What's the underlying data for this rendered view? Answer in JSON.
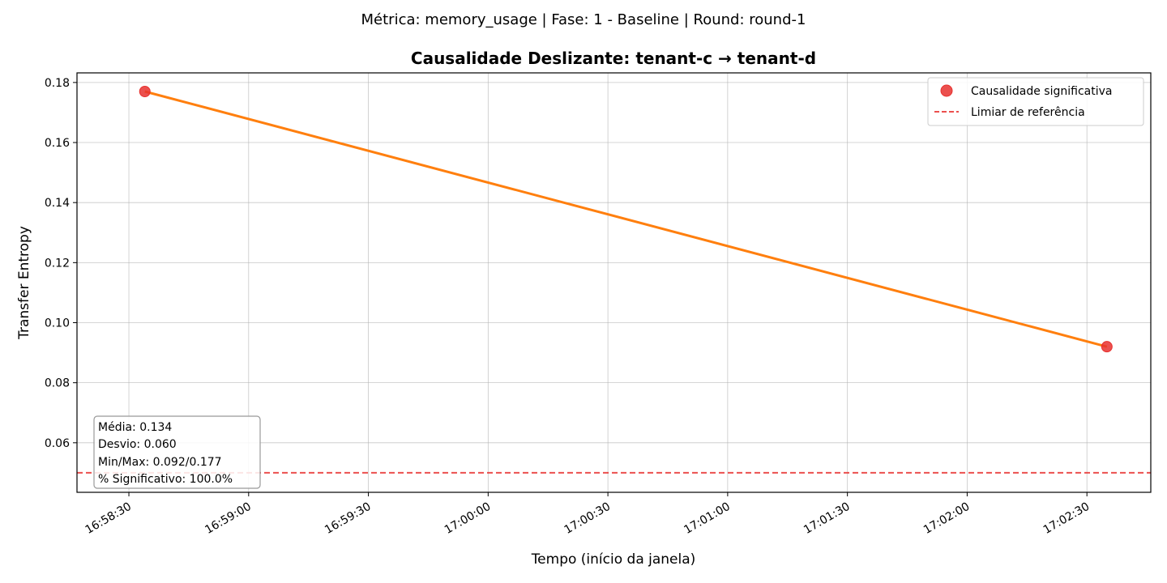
{
  "chart_data": {
    "type": "line",
    "suptitle": "Métrica: memory_usage | Fase: 1 - Baseline | Round: round-1",
    "title": "Causalidade Deslizante: tenant-c → tenant-d",
    "xlabel": "Tempo (início da janela)",
    "ylabel": "Transfer Entropy",
    "x_ticks": [
      "16:58:30",
      "16:59:00",
      "16:59:30",
      "17:00:00",
      "17:00:30",
      "17:01:00",
      "17:01:30",
      "17:02:00",
      "17:02:30"
    ],
    "y_ticks": [
      "0.06",
      "0.08",
      "0.10",
      "0.12",
      "0.14",
      "0.16",
      "0.18"
    ],
    "xlim": [
      "16:58:17",
      "17:02:46"
    ],
    "ylim": [
      0.0435,
      0.1832
    ],
    "grid": true,
    "series": [
      {
        "x": [
          "16:58:34",
          "17:02:35"
        ],
        "values": [
          0.177,
          0.092
        ],
        "color": "#ff7f0e"
      }
    ],
    "significant_points": {
      "name": "Causalidade significativa",
      "x": [
        "16:58:34",
        "17:02:35"
      ],
      "values": [
        0.177,
        0.092
      ],
      "color": "#e8312f"
    },
    "reference_line": {
      "name": "Limiar de referência",
      "value": 0.05,
      "color": "#e8312f",
      "style": "dashed"
    },
    "legend_position": "top-right",
    "stats_box": [
      "Média: 0.134",
      "Desvio: 0.060",
      "Min/Max: 0.092/0.177",
      "% Significativo: 100.0%"
    ]
  }
}
